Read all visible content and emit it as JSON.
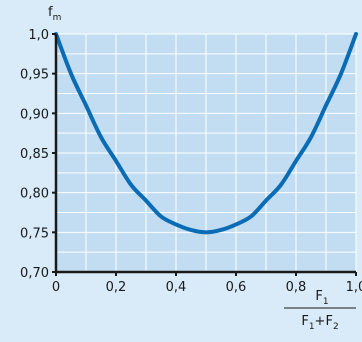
{
  "chart_data": {
    "type": "line",
    "title": "",
    "ylabel": "f",
    "ylabel_sub": "m",
    "xlabel_numerator": "F",
    "xlabel_numerator_sub": "1",
    "xlabel_denominator_a": "F",
    "xlabel_denominator_a_sub": "1",
    "xlabel_denominator_plus": "+",
    "xlabel_denominator_b": "F",
    "xlabel_denominator_b_sub": "2",
    "xlim": [
      0,
      1.0
    ],
    "ylim": [
      0.7,
      1.0
    ],
    "x_ticks": [
      0,
      0.2,
      0.4,
      0.6,
      0.8,
      1.0
    ],
    "x_tick_labels": [
      "0",
      "0,2",
      "0,4",
      "0,6",
      "0,8",
      "1,0"
    ],
    "y_ticks": [
      0.7,
      0.75,
      0.8,
      0.85,
      0.9,
      0.95,
      1.0
    ],
    "y_tick_labels": [
      "0,70",
      "0,75",
      "0,80",
      "0,85",
      "0,90",
      "0,95",
      "1,0"
    ],
    "grid": true,
    "series": [
      {
        "color": "#0a6cb4",
        "x": [
          0,
          0.05,
          0.1,
          0.15,
          0.2,
          0.25,
          0.3,
          0.35,
          0.4,
          0.45,
          0.5,
          0.55,
          0.6,
          0.65,
          0.7,
          0.75,
          0.8,
          0.85,
          0.9,
          0.95,
          1.0
        ],
        "y": [
          1.0,
          0.95,
          0.91,
          0.87,
          0.84,
          0.81,
          0.79,
          0.77,
          0.76,
          0.753,
          0.75,
          0.753,
          0.76,
          0.77,
          0.79,
          0.81,
          0.84,
          0.87,
          0.91,
          0.95,
          1.0
        ]
      }
    ]
  }
}
